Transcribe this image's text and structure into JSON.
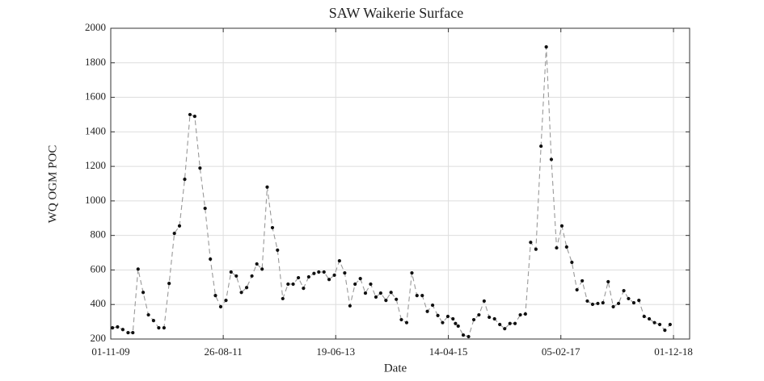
{
  "chart_data": {
    "type": "line",
    "title": "SAW Waikerie Surface",
    "x_label": "Date",
    "y_label": "WQ OGM POC",
    "x": [
      "2009-11-11",
      "2009-12-11",
      "2010-01-11",
      "2010-02-11",
      "2010-03-11",
      "2010-04-11",
      "2010-05-11",
      "2010-06-11",
      "2010-07-11",
      "2010-08-11",
      "2010-09-11",
      "2010-10-11",
      "2010-11-11",
      "2010-12-11",
      "2011-01-11",
      "2011-02-11",
      "2011-03-11",
      "2011-04-11",
      "2011-05-11",
      "2011-06-11",
      "2011-07-11",
      "2011-08-11",
      "2011-09-11",
      "2011-10-11",
      "2011-11-11",
      "2011-12-11",
      "2012-01-11",
      "2012-02-11",
      "2012-03-11",
      "2012-04-11",
      "2012-05-11",
      "2012-06-11",
      "2012-07-11",
      "2012-08-11",
      "2012-09-11",
      "2012-10-11",
      "2012-11-11",
      "2012-12-11",
      "2013-01-11",
      "2013-02-11",
      "2013-03-11",
      "2013-04-11",
      "2013-05-11",
      "2013-06-11",
      "2013-07-11",
      "2013-08-11",
      "2013-09-11",
      "2013-10-11",
      "2013-11-11",
      "2013-12-11",
      "2014-01-11",
      "2014-02-11",
      "2014-03-11",
      "2014-04-11",
      "2014-05-11",
      "2014-06-11",
      "2014-07-11",
      "2014-08-11",
      "2014-09-11",
      "2014-10-11",
      "2014-11-11",
      "2014-12-11",
      "2015-01-11",
      "2015-02-11",
      "2015-03-11",
      "2015-04-11",
      "2015-05-11",
      "2015-05-26",
      "2015-06-11",
      "2015-07-11",
      "2015-08-11",
      "2015-09-11",
      "2015-10-11",
      "2015-11-11",
      "2015-12-11",
      "2016-01-11",
      "2016-02-11",
      "2016-03-11",
      "2016-04-11",
      "2016-05-11",
      "2016-06-11",
      "2016-07-11",
      "2016-08-11",
      "2016-09-11",
      "2016-10-11",
      "2016-11-11",
      "2016-12-11",
      "2017-01-11",
      "2017-02-11",
      "2017-03-11",
      "2017-04-11",
      "2017-05-11",
      "2017-06-11",
      "2017-07-11",
      "2017-08-11",
      "2017-09-11",
      "2017-10-11",
      "2017-11-11",
      "2017-12-11",
      "2018-01-11",
      "2018-02-11",
      "2018-03-11",
      "2018-04-11",
      "2018-05-11",
      "2018-06-11",
      "2018-07-11",
      "2018-08-11",
      "2018-09-11",
      "2018-10-11",
      "2018-11-11"
    ],
    "values": [
      265,
      270,
      255,
      237,
      237,
      605,
      470,
      340,
      307,
      265,
      265,
      522,
      812,
      855,
      1125,
      1500,
      1490,
      1190,
      957,
      663,
      452,
      387,
      424,
      588,
      565,
      470,
      498,
      565,
      635,
      605,
      1080,
      845,
      715,
      434,
      518,
      518,
      555,
      494,
      560,
      580,
      588,
      588,
      545,
      570,
      653,
      583,
      392,
      518,
      550,
      466,
      518,
      443,
      466,
      424,
      470,
      430,
      312,
      295,
      583,
      452,
      452,
      360,
      396,
      336,
      295,
      331,
      317,
      290,
      275,
      223,
      214,
      312,
      340,
      420,
      326,
      317,
      284,
      260,
      290,
      290,
      340,
      345,
      760,
      720,
      1317,
      1892,
      1240,
      728,
      855,
      733,
      644,
      485,
      537,
      420,
      401,
      406,
      410,
      532,
      387,
      406,
      480,
      434,
      410,
      424,
      331,
      317,
      295,
      284,
      251,
      284
    ],
    "color": "#999999",
    "marker_color": "#111111",
    "line_style": "dashed",
    "xlim": [
      "2009-11-01",
      "2019-03-06"
    ],
    "xticks": [
      {
        "value": "2009-11-01",
        "label": "01-11-09"
      },
      {
        "value": "2011-08-26",
        "label": "26-08-11"
      },
      {
        "value": "2013-06-19",
        "label": "19-06-13"
      },
      {
        "value": "2015-04-14",
        "label": "14-04-15"
      },
      {
        "value": "2017-02-05",
        "label": "05-02-17"
      },
      {
        "value": "2018-12-01",
        "label": "01-12-18"
      }
    ],
    "ylim": [
      200,
      2000
    ],
    "yticks": [
      200,
      400,
      600,
      800,
      1000,
      1200,
      1400,
      1600,
      1800,
      2000
    ],
    "grid": true
  }
}
